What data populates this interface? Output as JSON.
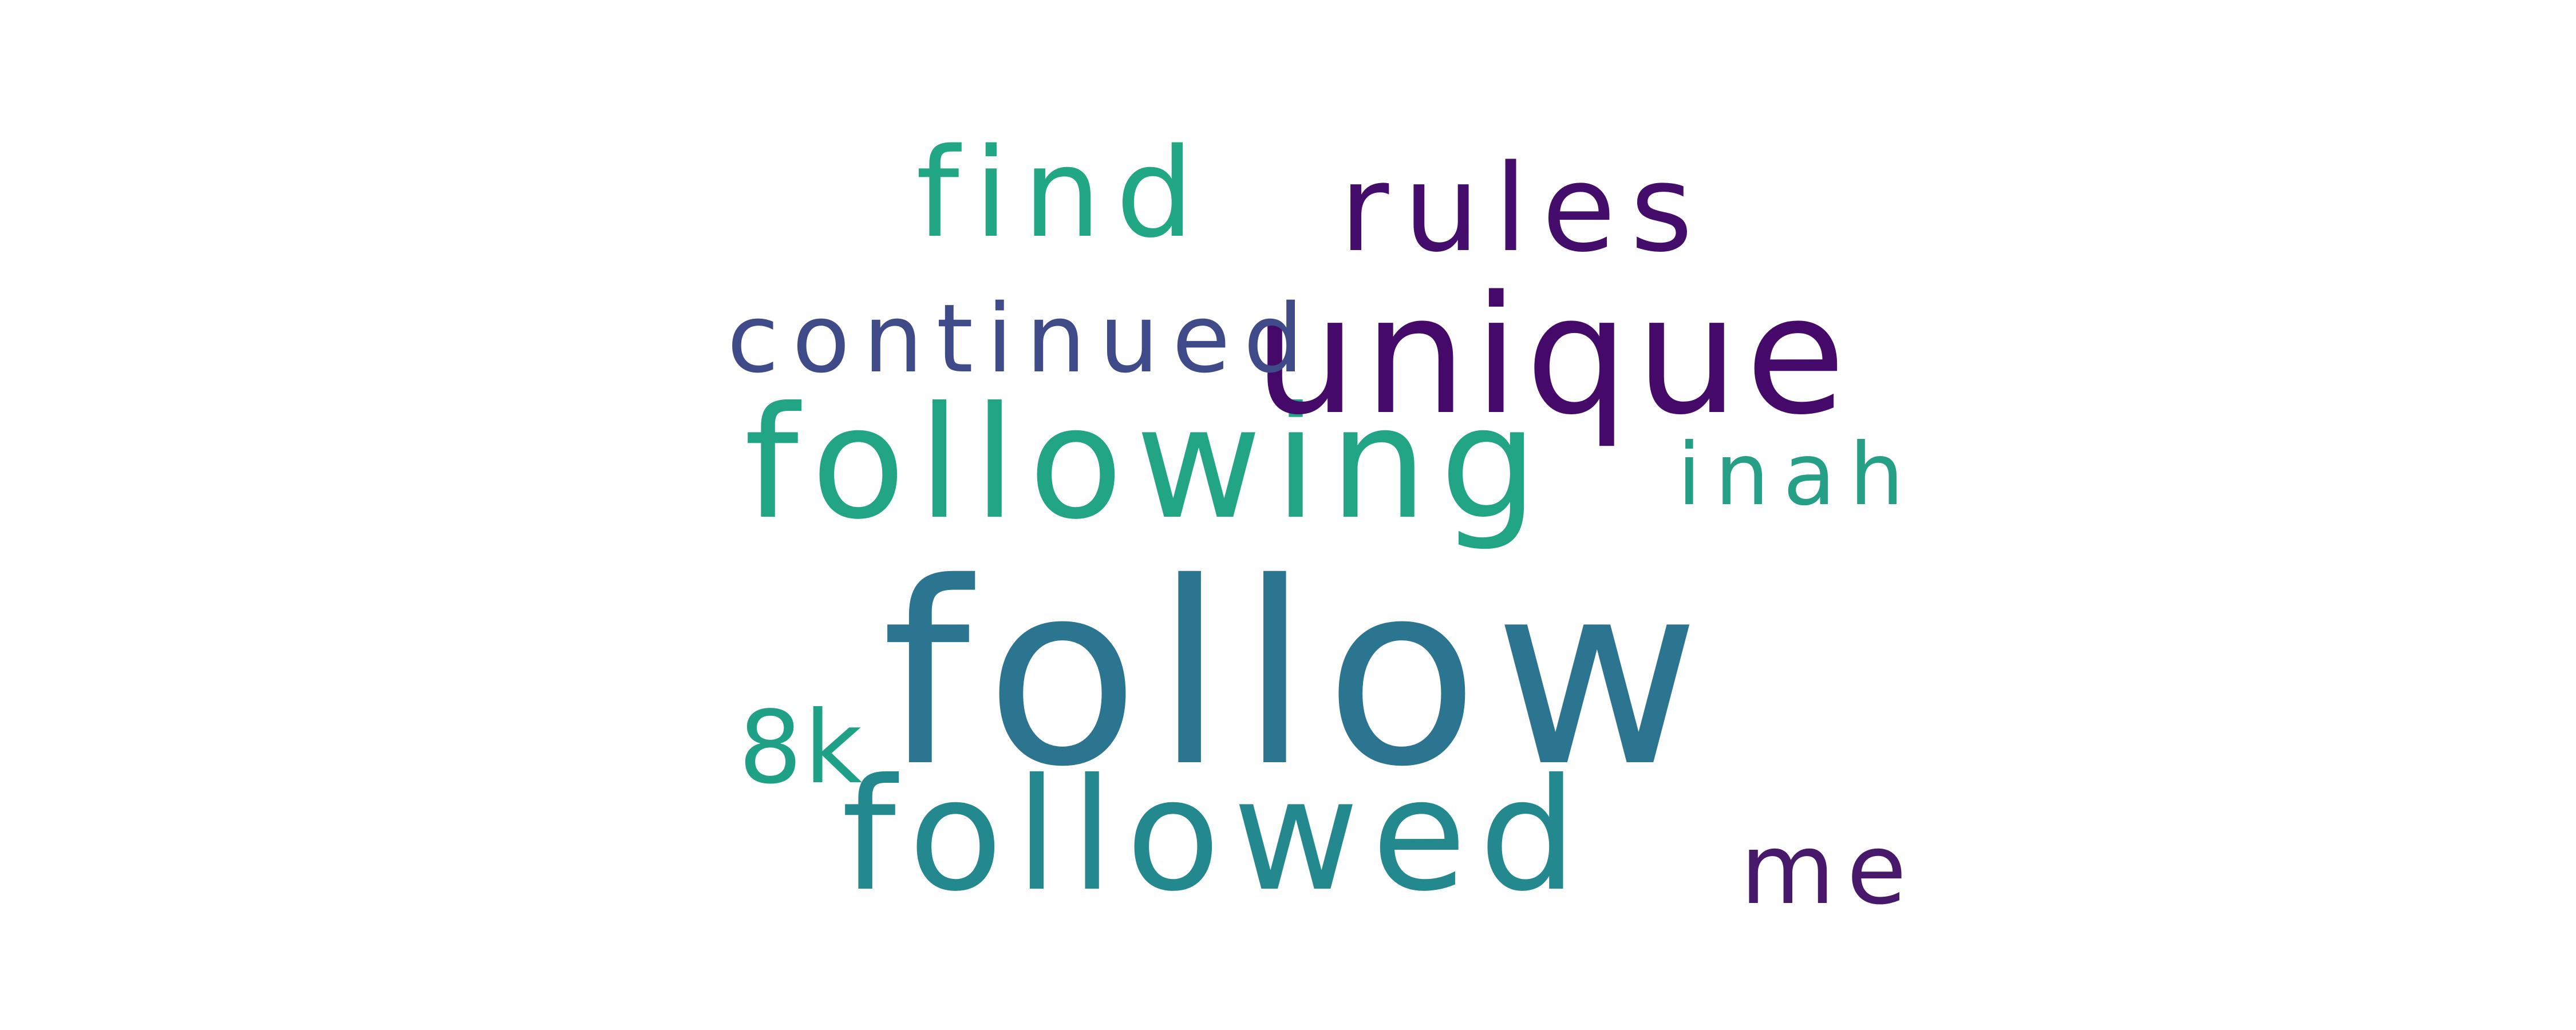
{
  "words": {
    "follow": {
      "text": "follow",
      "color": "#2c7590"
    },
    "following": {
      "text": "following",
      "color": "#21a585"
    },
    "followed": {
      "text": "followed",
      "color": "#23898e"
    },
    "unique": {
      "text": "unique",
      "color": "#450a69"
    },
    "find": {
      "text": "find",
      "color": "#22a784"
    },
    "rules": {
      "text": "rules",
      "color": "#440d6b"
    },
    "continued": {
      "text": "continued",
      "color": "#3f4a89"
    },
    "inah": {
      "text": "inah",
      "color": "#25a087"
    },
    "8k": {
      "text": "8k",
      "color": "#1fa188"
    },
    "me": {
      "text": "me",
      "color": "#48186a"
    }
  }
}
